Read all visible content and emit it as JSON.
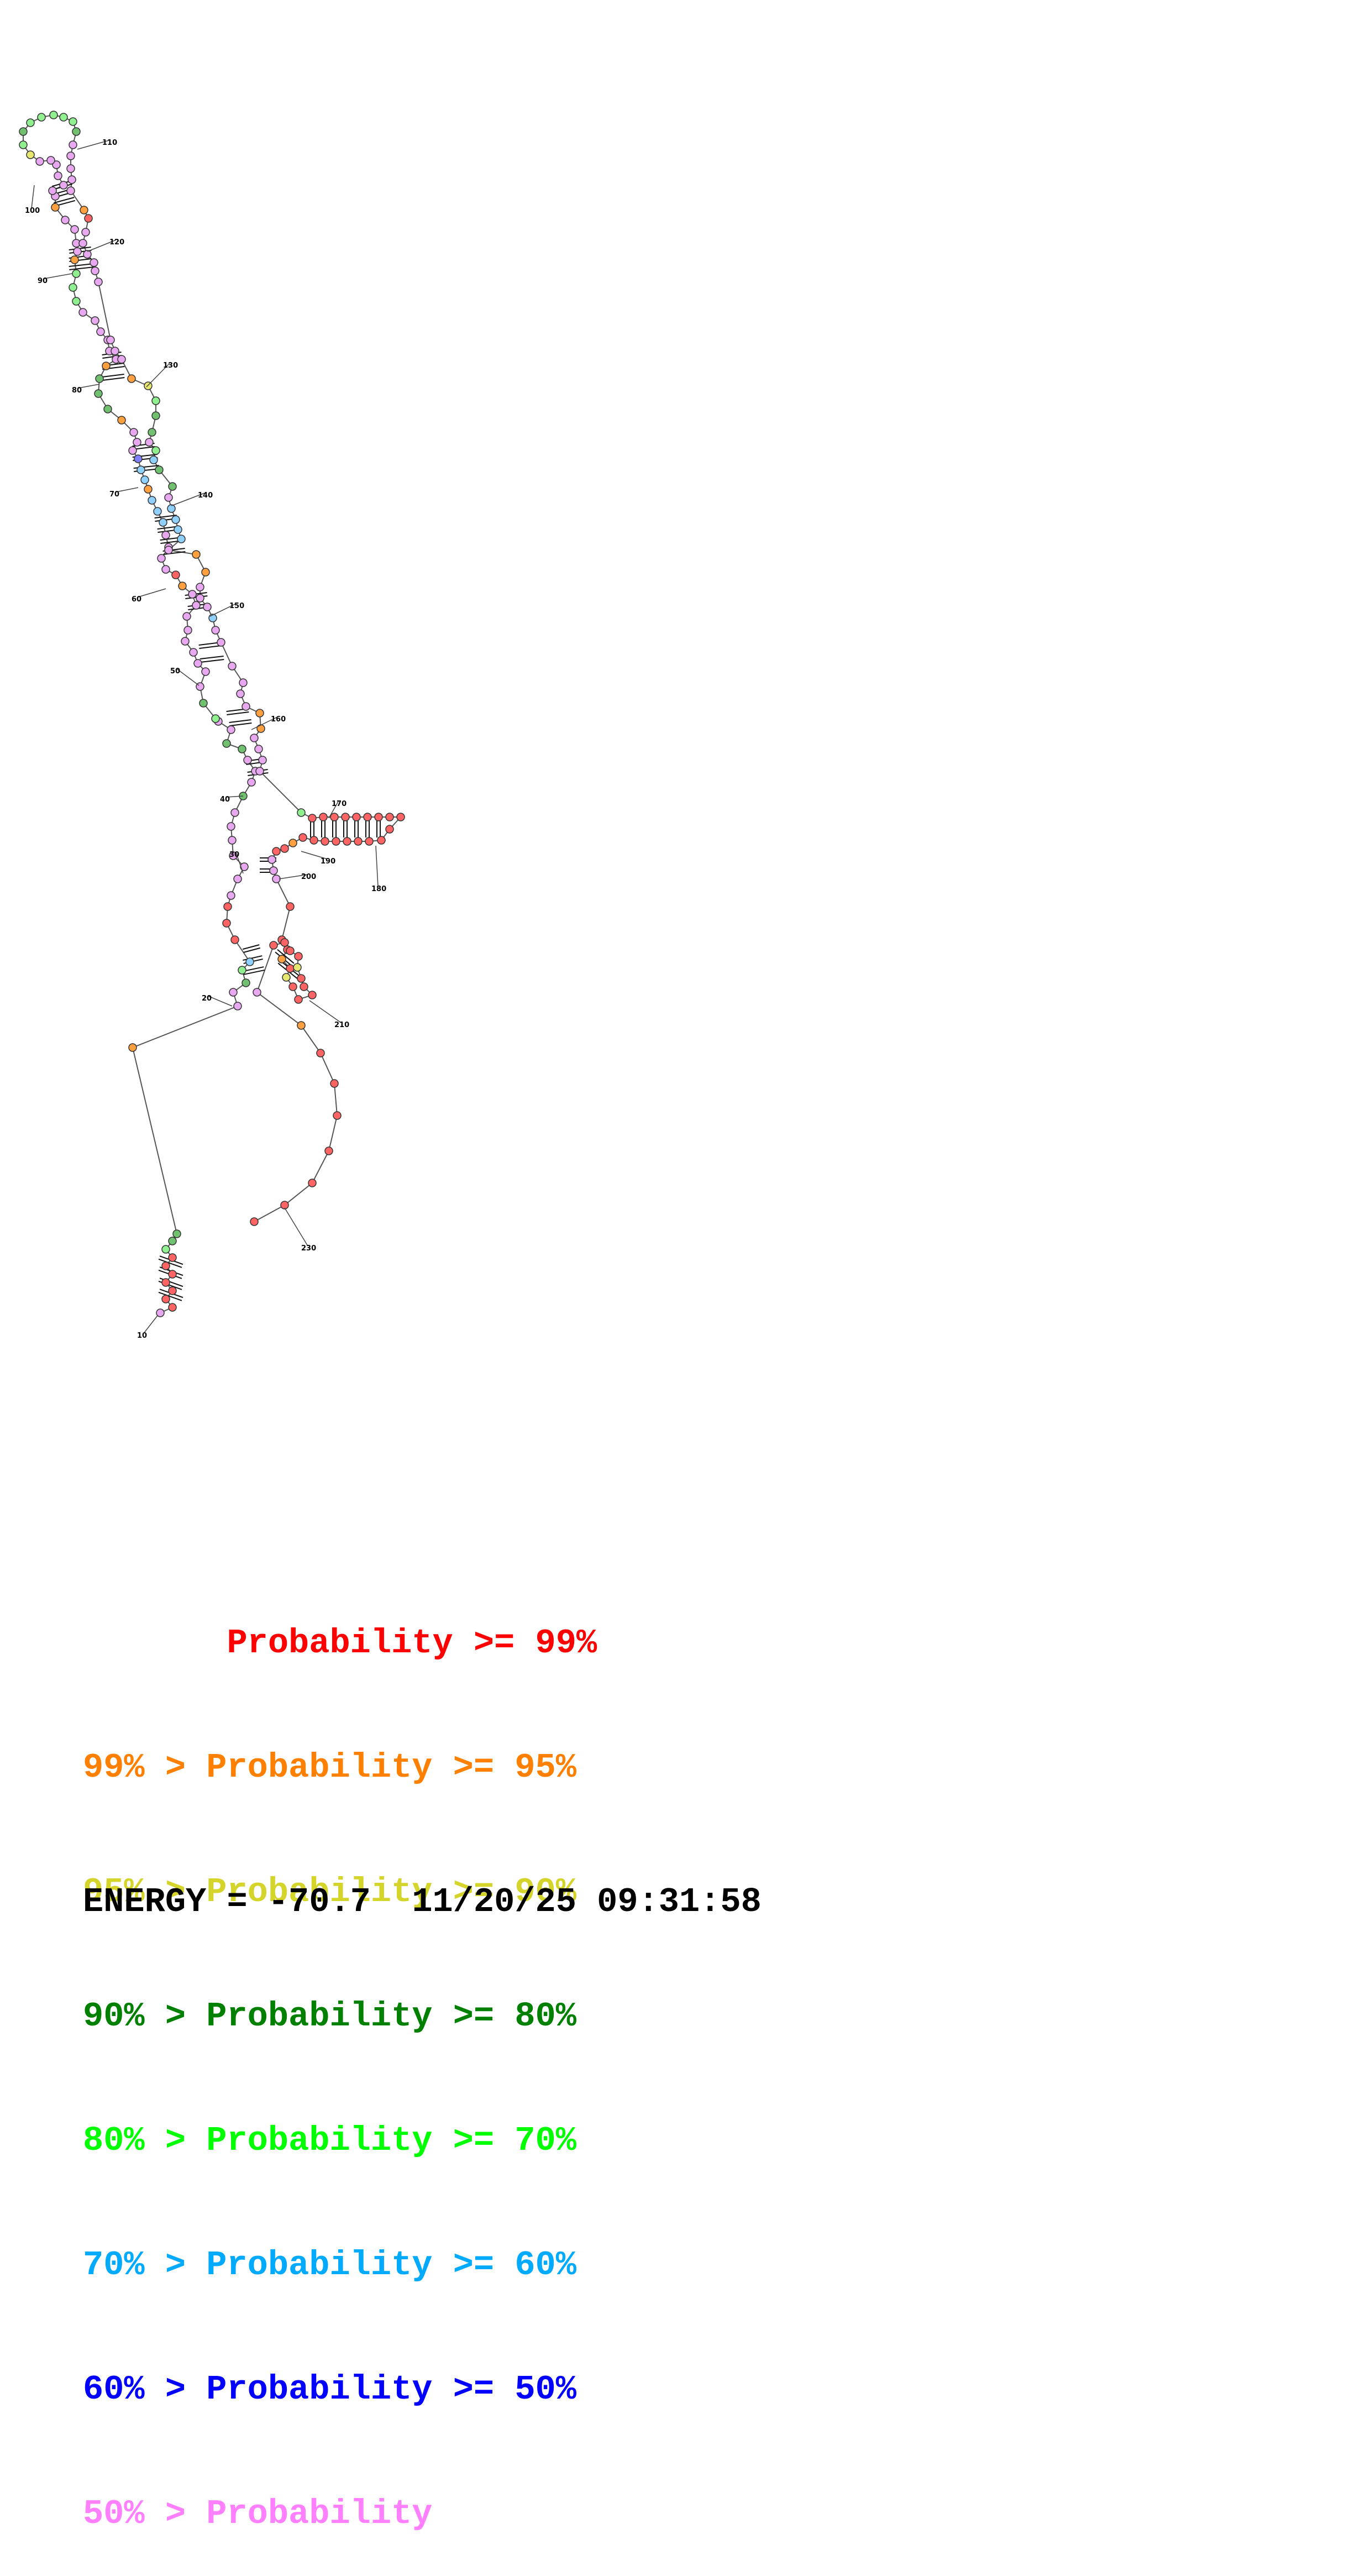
{
  "structure_labels": [
    "10",
    "20",
    "30",
    "40",
    "50",
    "60",
    "70",
    "80",
    "90",
    "100",
    "110",
    "120",
    "130",
    "140",
    "150",
    "160",
    "170",
    "180",
    "190",
    "200",
    "210",
    "230"
  ],
  "legend": [
    {
      "text": "       Probability >= 99%",
      "color": "#ff0000"
    },
    {
      "text": "99% > Probability >= 95%",
      "color": "#ff8000"
    },
    {
      "text": "95% > Probability >= 90%",
      "color": "#d4d42a"
    },
    {
      "text": "90% > Probability >= 80%",
      "color": "#008000"
    },
    {
      "text": "80% > Probability >= 70%",
      "color": "#00ff00"
    },
    {
      "text": "70% > Probability >= 60%",
      "color": "#00aaff"
    },
    {
      "text": "60% > Probability >= 50%",
      "color": "#0000ff"
    },
    {
      "text": "50% > Probability",
      "color": "#ff80ff"
    }
  ],
  "footer": {
    "energy": "ENERGY = -70.7",
    "timestamp": "11/20/25 09:31:58"
  }
}
